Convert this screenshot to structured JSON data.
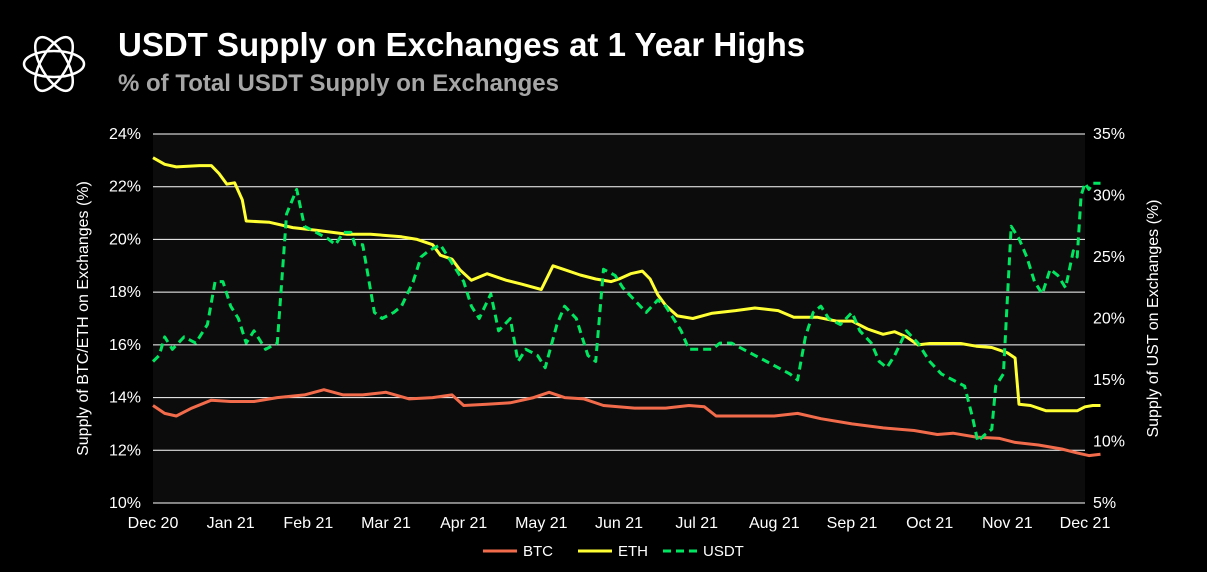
{
  "header": {
    "title": "USDT Supply on Exchanges at 1 Year Highs",
    "subtitle": "% of Total USDT Supply on Exchanges"
  },
  "colors": {
    "background": "#000000",
    "plot_bg": "#0c0c0c",
    "grid": "#ffffff",
    "btc": "#f26b4b",
    "eth": "#ffff33",
    "usdt": "#00e660"
  },
  "chart_data": {
    "type": "line",
    "x": [
      "Dec 20",
      "Jan 21",
      "Feb 21",
      "Mar 21",
      "Apr 21",
      "May 21",
      "Jun 21",
      "Jul 21",
      "Aug 21",
      "Sep 21",
      "Oct 21",
      "Nov 21",
      "Dec 21"
    ],
    "x_ticks": [
      "Dec 20",
      "Jan 21",
      "Feb 21",
      "Mar 21",
      "Apr 21",
      "May 21",
      "Jun 21",
      "Jul 21",
      "Aug 21",
      "Sep 21",
      "Oct 21",
      "Nov 21",
      "Dec 21"
    ],
    "ylabel_left": "Supply of BTC/ETH on Exchanges (%)",
    "ylabel_right": "Supply of UST on Exchanges (%)",
    "ylim_left": [
      10,
      24
    ],
    "ylim_right": [
      5,
      35
    ],
    "yticks_left": [
      "10%",
      "12%",
      "14%",
      "16%",
      "18%",
      "20%",
      "22%",
      "24%"
    ],
    "yticks_right": [
      "5%",
      "10%",
      "15%",
      "20%",
      "25%",
      "30%",
      "35%"
    ],
    "grid": true,
    "legend": "bottom-center",
    "series": [
      {
        "name": "BTC",
        "axis": "left",
        "style": "solid",
        "points": [
          [
            0,
            13.7
          ],
          [
            0.15,
            13.4
          ],
          [
            0.3,
            13.3
          ],
          [
            0.5,
            13.6
          ],
          [
            0.75,
            13.9
          ],
          [
            1.0,
            13.85
          ],
          [
            1.3,
            13.85
          ],
          [
            1.6,
            14.0
          ],
          [
            1.95,
            14.1
          ],
          [
            2.2,
            14.3
          ],
          [
            2.45,
            14.1
          ],
          [
            2.7,
            14.1
          ],
          [
            3.0,
            14.2
          ],
          [
            3.3,
            13.95
          ],
          [
            3.6,
            14.0
          ],
          [
            3.85,
            14.1
          ],
          [
            4.0,
            13.7
          ],
          [
            4.3,
            13.75
          ],
          [
            4.6,
            13.8
          ],
          [
            4.9,
            14.0
          ],
          [
            5.1,
            14.2
          ],
          [
            5.3,
            14.0
          ],
          [
            5.55,
            13.95
          ],
          [
            5.8,
            13.7
          ],
          [
            6.2,
            13.6
          ],
          [
            6.6,
            13.6
          ],
          [
            6.9,
            13.7
          ],
          [
            7.1,
            13.65
          ],
          [
            7.25,
            13.3
          ],
          [
            7.6,
            13.3
          ],
          [
            8.0,
            13.3
          ],
          [
            8.3,
            13.4
          ],
          [
            8.6,
            13.2
          ],
          [
            9.0,
            13.0
          ],
          [
            9.4,
            12.85
          ],
          [
            9.8,
            12.75
          ],
          [
            10.1,
            12.6
          ],
          [
            10.3,
            12.65
          ],
          [
            10.6,
            12.5
          ],
          [
            10.9,
            12.45
          ],
          [
            11.1,
            12.3
          ],
          [
            11.4,
            12.2
          ],
          [
            11.7,
            12.05
          ],
          [
            11.9,
            11.9
          ],
          [
            12.05,
            11.8
          ],
          [
            12.2,
            11.85
          ]
        ]
      },
      {
        "name": "ETH",
        "axis": "left",
        "style": "solid",
        "points": [
          [
            0,
            23.1
          ],
          [
            0.15,
            22.85
          ],
          [
            0.3,
            22.75
          ],
          [
            0.6,
            22.8
          ],
          [
            0.75,
            22.8
          ],
          [
            0.85,
            22.5
          ],
          [
            0.95,
            22.1
          ],
          [
            1.05,
            22.15
          ],
          [
            1.15,
            21.5
          ],
          [
            1.2,
            20.7
          ],
          [
            1.5,
            20.65
          ],
          [
            1.8,
            20.45
          ],
          [
            2.1,
            20.35
          ],
          [
            2.5,
            20.2
          ],
          [
            2.8,
            20.2
          ],
          [
            3.2,
            20.1
          ],
          [
            3.4,
            20.0
          ],
          [
            3.6,
            19.8
          ],
          [
            3.7,
            19.4
          ],
          [
            3.85,
            19.25
          ],
          [
            3.95,
            18.85
          ],
          [
            4.1,
            18.45
          ],
          [
            4.3,
            18.7
          ],
          [
            4.55,
            18.45
          ],
          [
            4.75,
            18.3
          ],
          [
            5.0,
            18.1
          ],
          [
            5.15,
            19.0
          ],
          [
            5.3,
            18.85
          ],
          [
            5.5,
            18.65
          ],
          [
            5.7,
            18.5
          ],
          [
            5.9,
            18.4
          ],
          [
            6.0,
            18.5
          ],
          [
            6.15,
            18.7
          ],
          [
            6.3,
            18.8
          ],
          [
            6.4,
            18.5
          ],
          [
            6.5,
            17.9
          ],
          [
            6.6,
            17.5
          ],
          [
            6.75,
            17.1
          ],
          [
            6.95,
            17.0
          ],
          [
            7.2,
            17.2
          ],
          [
            7.5,
            17.3
          ],
          [
            7.75,
            17.4
          ],
          [
            8.05,
            17.3
          ],
          [
            8.25,
            17.05
          ],
          [
            8.55,
            17.05
          ],
          [
            8.8,
            16.9
          ],
          [
            9.0,
            16.9
          ],
          [
            9.2,
            16.6
          ],
          [
            9.4,
            16.4
          ],
          [
            9.55,
            16.5
          ],
          [
            9.7,
            16.3
          ],
          [
            9.85,
            16.0
          ],
          [
            10.0,
            16.05
          ],
          [
            10.4,
            16.05
          ],
          [
            10.6,
            15.95
          ],
          [
            10.8,
            15.9
          ],
          [
            11.0,
            15.7
          ],
          [
            11.1,
            15.5
          ],
          [
            11.15,
            13.75
          ],
          [
            11.3,
            13.7
          ],
          [
            11.5,
            13.5
          ],
          [
            11.7,
            13.5
          ],
          [
            11.9,
            13.5
          ],
          [
            12.0,
            13.65
          ],
          [
            12.1,
            13.7
          ],
          [
            12.2,
            13.7
          ]
        ]
      },
      {
        "name": "USDT",
        "axis": "right",
        "style": "dashed",
        "points": [
          [
            0,
            16.5
          ],
          [
            0.08,
            17.0
          ],
          [
            0.15,
            18.5
          ],
          [
            0.25,
            17.5
          ],
          [
            0.4,
            18.5
          ],
          [
            0.55,
            18.0
          ],
          [
            0.7,
            19.5
          ],
          [
            0.8,
            23.0
          ],
          [
            0.9,
            23.0
          ],
          [
            1.0,
            21.0
          ],
          [
            1.1,
            20.0
          ],
          [
            1.2,
            18.0
          ],
          [
            1.3,
            19.0
          ],
          [
            1.45,
            17.5
          ],
          [
            1.6,
            18.0
          ],
          [
            1.72,
            28.5
          ],
          [
            1.85,
            30.5
          ],
          [
            1.95,
            27.5
          ],
          [
            2.1,
            27.0
          ],
          [
            2.25,
            26.5
          ],
          [
            2.35,
            26.0
          ],
          [
            2.45,
            27.0
          ],
          [
            2.55,
            27.0
          ],
          [
            2.6,
            26.0
          ],
          [
            2.7,
            26.0
          ],
          [
            2.85,
            20.5
          ],
          [
            2.95,
            20.0
          ],
          [
            3.1,
            20.5
          ],
          [
            3.2,
            21.0
          ],
          [
            3.35,
            23.0
          ],
          [
            3.45,
            25.0
          ],
          [
            3.55,
            25.5
          ],
          [
            3.7,
            26.0
          ],
          [
            3.85,
            24.5
          ],
          [
            4.0,
            23.0
          ],
          [
            4.1,
            21.0
          ],
          [
            4.2,
            20.0
          ],
          [
            4.35,
            22.0
          ],
          [
            4.45,
            19.0
          ],
          [
            4.6,
            20.0
          ],
          [
            4.7,
            16.5
          ],
          [
            4.8,
            17.5
          ],
          [
            4.95,
            17.0
          ],
          [
            5.05,
            16.0
          ],
          [
            5.2,
            19.5
          ],
          [
            5.3,
            21.0
          ],
          [
            5.45,
            20.0
          ],
          [
            5.6,
            17.0
          ],
          [
            5.7,
            16.5
          ],
          [
            5.8,
            24.0
          ],
          [
            5.95,
            23.5
          ],
          [
            6.05,
            22.5
          ],
          [
            6.2,
            21.5
          ],
          [
            6.35,
            20.5
          ],
          [
            6.5,
            21.5
          ],
          [
            6.6,
            21.0
          ],
          [
            6.7,
            20.0
          ],
          [
            6.8,
            19.0
          ],
          [
            6.9,
            17.5
          ],
          [
            7.05,
            17.5
          ],
          [
            7.2,
            17.5
          ],
          [
            7.3,
            18.0
          ],
          [
            7.45,
            18.0
          ],
          [
            7.6,
            17.5
          ],
          [
            7.75,
            17.0
          ],
          [
            7.9,
            16.5
          ],
          [
            8.05,
            16.0
          ],
          [
            8.2,
            15.5
          ],
          [
            8.3,
            15.0
          ],
          [
            8.4,
            18.5
          ],
          [
            8.5,
            20.5
          ],
          [
            8.6,
            21.0
          ],
          [
            8.7,
            20.0
          ],
          [
            8.85,
            19.5
          ],
          [
            9.0,
            20.5
          ],
          [
            9.1,
            19.0
          ],
          [
            9.25,
            18.0
          ],
          [
            9.35,
            16.5
          ],
          [
            9.45,
            16.0
          ],
          [
            9.55,
            17.0
          ],
          [
            9.7,
            19.0
          ],
          [
            9.85,
            18.0
          ],
          [
            10.0,
            16.5
          ],
          [
            10.15,
            15.5
          ],
          [
            10.3,
            15.0
          ],
          [
            10.45,
            14.5
          ],
          [
            10.55,
            12.0
          ],
          [
            10.62,
            10.0
          ],
          [
            10.7,
            10.5
          ],
          [
            10.8,
            11.0
          ],
          [
            10.85,
            14.5
          ],
          [
            10.95,
            15.5
          ],
          [
            11.05,
            27.5
          ],
          [
            11.15,
            26.5
          ],
          [
            11.25,
            25.0
          ],
          [
            11.35,
            23.0
          ],
          [
            11.45,
            22.0
          ],
          [
            11.55,
            24.0
          ],
          [
            11.65,
            23.5
          ],
          [
            11.75,
            22.5
          ],
          [
            11.85,
            25.5
          ],
          [
            11.9,
            25.0
          ],
          [
            11.95,
            30.0
          ],
          [
            12.0,
            31.0
          ],
          [
            12.05,
            30.5
          ],
          [
            12.1,
            31.0
          ],
          [
            12.15,
            31.0
          ],
          [
            12.2,
            31.0
          ]
        ]
      }
    ]
  }
}
